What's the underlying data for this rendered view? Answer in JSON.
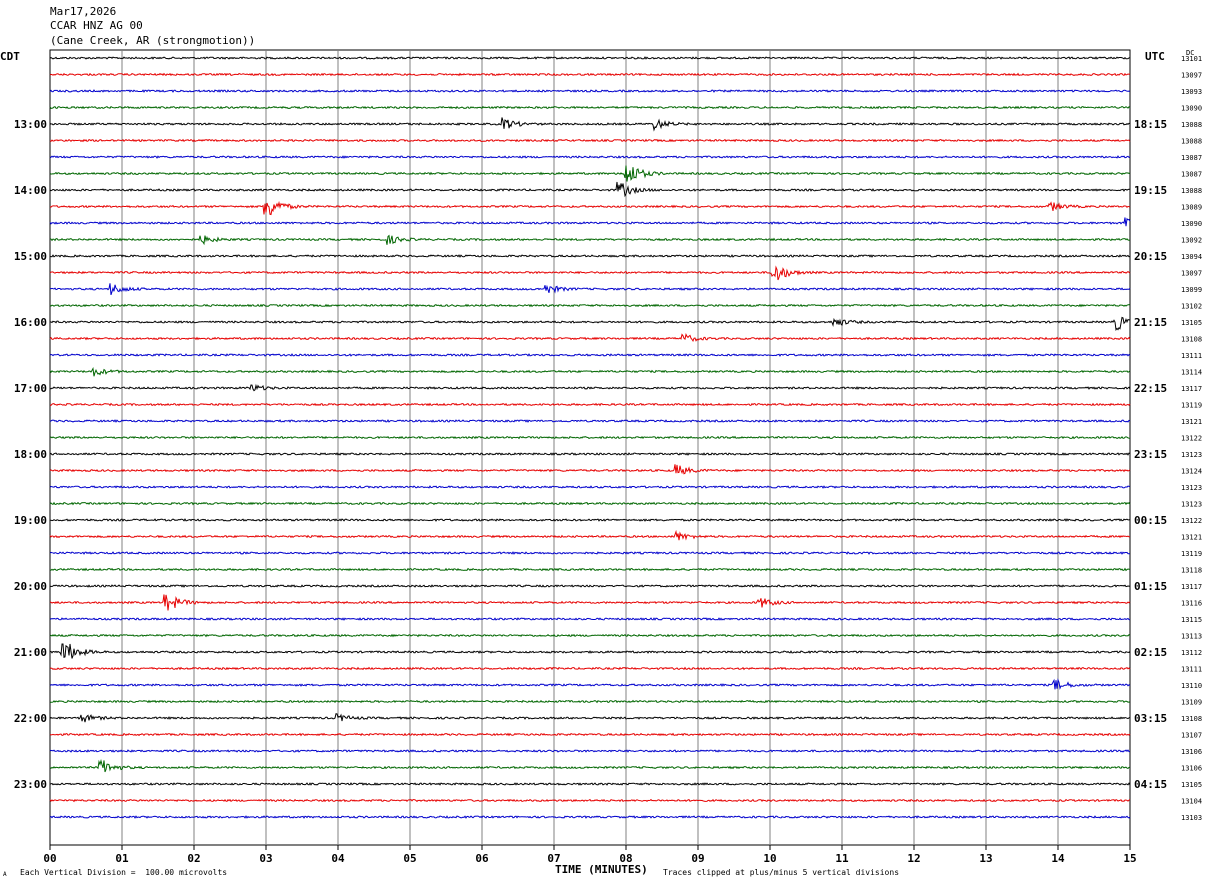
{
  "header": {
    "date": "Mar17,2026",
    "station": "CCAR HNZ AG 00",
    "location": "(Cane Creek, AR (strongmotion))"
  },
  "tz_left": "CDT",
  "tz_right": "UTC",
  "dc_label": "DC",
  "footer": {
    "scale": "Each Vertical Division =  100.00 microvolts",
    "clip": "Traces clipped at plus/minus 5 vertical divisions",
    "mark": "A"
  },
  "chart_data": {
    "type": "line",
    "title": "CCAR HNZ AG 00",
    "xlabel": "TIME (MINUTES)",
    "xlim": [
      0,
      15
    ],
    "x_ticks": [
      "00",
      "01",
      "02",
      "03",
      "04",
      "05",
      "06",
      "07",
      "08",
      "09",
      "10",
      "11",
      "12",
      "13",
      "14",
      "15"
    ],
    "trace_colors": [
      "#000000",
      "#e60000",
      "#0000cc",
      "#006600"
    ],
    "cdt_labels": [
      "13:00",
      "14:00",
      "15:00",
      "16:00",
      "17:00",
      "18:00",
      "19:00",
      "20:00",
      "21:00",
      "22:00",
      "23:00"
    ],
    "utc_labels": [
      "18:15",
      "19:15",
      "20:15",
      "21:15",
      "22:15",
      "23:15",
      "00:15",
      "01:15",
      "02:15",
      "03:15",
      "04:15"
    ],
    "dc_counts": [
      "13101",
      "13097",
      "13093",
      "13090",
      "13088",
      "13088",
      "13087",
      "13087",
      "13088",
      "13089",
      "13090",
      "13092",
      "13094",
      "13097",
      "13099",
      "13102",
      "13105",
      "13108",
      "13111",
      "13114",
      "13117",
      "13119",
      "13121",
      "13122",
      "13123",
      "13124",
      "13123",
      "13123",
      "13122",
      "13121",
      "13119",
      "13118",
      "13117",
      "13116",
      "13115",
      "13113",
      "13112",
      "13111",
      "13110",
      "13109",
      "13108",
      "13107",
      "13106",
      "13106",
      "13105",
      "13104",
      "13103"
    ],
    "events": [
      {
        "trace": 4,
        "minute": 6.3,
        "amp": 2.0
      },
      {
        "trace": 4,
        "minute": 8.4,
        "amp": 1.8
      },
      {
        "trace": 7,
        "minute": 8.0,
        "amp": 5.0
      },
      {
        "trace": 8,
        "minute": 7.9,
        "amp": 3.0
      },
      {
        "trace": 9,
        "minute": 3.0,
        "amp": 5.0
      },
      {
        "trace": 9,
        "minute": 13.9,
        "amp": 1.5
      },
      {
        "trace": 10,
        "minute": 14.95,
        "amp": 3.0
      },
      {
        "trace": 11,
        "minute": 2.1,
        "amp": 1.5
      },
      {
        "trace": 11,
        "minute": 4.7,
        "amp": 1.5
      },
      {
        "trace": 13,
        "minute": 10.05,
        "amp": 4.0
      },
      {
        "trace": 14,
        "minute": 0.85,
        "amp": 2.0
      },
      {
        "trace": 14,
        "minute": 6.9,
        "amp": 1.5
      },
      {
        "trace": 16,
        "minute": 10.9,
        "amp": 1.5
      },
      {
        "trace": 16,
        "minute": 14.8,
        "amp": 3.0
      },
      {
        "trace": 17,
        "minute": 8.8,
        "amp": 1.5
      },
      {
        "trace": 19,
        "minute": 0.6,
        "amp": 1.5
      },
      {
        "trace": 20,
        "minute": 2.8,
        "amp": 1.2
      },
      {
        "trace": 25,
        "minute": 8.7,
        "amp": 2.0
      },
      {
        "trace": 29,
        "minute": 8.7,
        "amp": 1.5
      },
      {
        "trace": 33,
        "minute": 1.6,
        "amp": 4.0
      },
      {
        "trace": 33,
        "minute": 9.85,
        "amp": 2.0
      },
      {
        "trace": 36,
        "minute": 0.18,
        "amp": 5.0
      },
      {
        "trace": 38,
        "minute": 13.95,
        "amp": 2.0
      },
      {
        "trace": 40,
        "minute": 0.45,
        "amp": 1.5
      },
      {
        "trace": 40,
        "minute": 4.0,
        "amp": 1.2
      },
      {
        "trace": 43,
        "minute": 0.7,
        "amp": 3.0
      }
    ]
  }
}
